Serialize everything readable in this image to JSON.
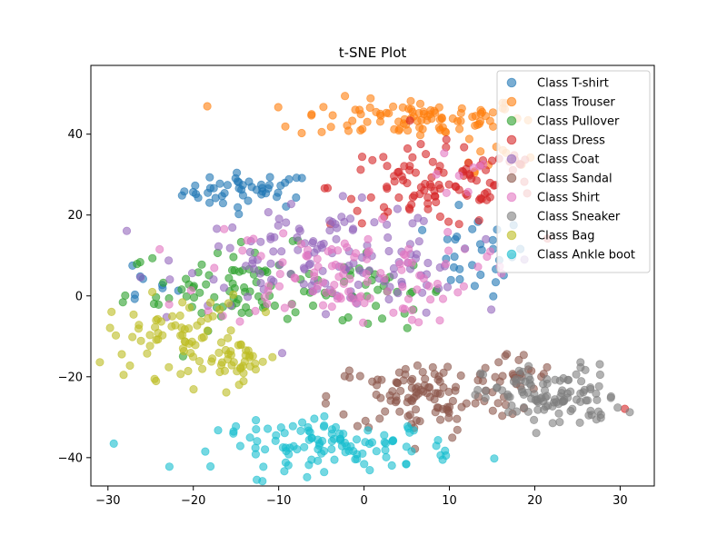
{
  "chart_data": {
    "type": "scatter",
    "title": "t-SNE Plot",
    "xlabel": "",
    "ylabel": "",
    "xlim": [
      -32,
      34
    ],
    "ylim": [
      -47,
      57
    ],
    "xticks": [
      -30,
      -20,
      -10,
      0,
      10,
      20,
      30
    ],
    "yticks": [
      -40,
      -20,
      0,
      20,
      40
    ],
    "grid": false,
    "legend": "top-right",
    "series": [
      {
        "name": "Class T-shirt",
        "color": "#1f77b4",
        "clusters": [
          {
            "cx": -13.5,
            "cy": 26,
            "sx": 3.8,
            "sy": 2.2,
            "n": 48
          },
          {
            "cx": 13,
            "cy": 10,
            "sx": 3,
            "sy": 5,
            "n": 30
          },
          {
            "cx": -26,
            "cy": 3,
            "sx": 2,
            "sy": 3,
            "n": 8
          }
        ]
      },
      {
        "name": "Class Trouser",
        "color": "#ff7f0e",
        "clusters": [
          {
            "cx": 6,
            "cy": 44,
            "sx": 7,
            "sy": 2.5,
            "n": 95
          },
          {
            "cx": 15,
            "cy": 35,
            "sx": 2,
            "sy": 2,
            "n": 10
          }
        ]
      },
      {
        "name": "Class Pullover",
        "color": "#2ca02c",
        "clusters": [
          {
            "cx": -14,
            "cy": 2,
            "sx": 7,
            "sy": 5,
            "n": 90
          },
          {
            "cx": 2,
            "cy": 1,
            "sx": 4,
            "sy": 3,
            "n": 25
          }
        ]
      },
      {
        "name": "Class Dress",
        "color": "#d62728",
        "clusters": [
          {
            "cx": 8,
            "cy": 27,
            "sx": 6,
            "sy": 5,
            "n": 100
          },
          {
            "cx": 31,
            "cy": -28,
            "sx": 0.3,
            "sy": 0.3,
            "n": 1
          },
          {
            "cx": 17,
            "cy": 33,
            "sx": 1.5,
            "sy": 1.5,
            "n": 6
          }
        ]
      },
      {
        "name": "Class Coat",
        "color": "#9467bd",
        "clusters": [
          {
            "cx": -5,
            "cy": 10,
            "sx": 8,
            "sy": 6,
            "n": 110
          },
          {
            "cx": 3,
            "cy": 5,
            "sx": 5,
            "sy": 5,
            "n": 30
          }
        ]
      },
      {
        "name": "Class Sandal",
        "color": "#8c564b",
        "clusters": [
          {
            "cx": 7,
            "cy": -25,
            "sx": 5.5,
            "sy": 4.5,
            "n": 110
          },
          {
            "cx": 17,
            "cy": -20,
            "sx": 3,
            "sy": 3,
            "n": 25
          }
        ]
      },
      {
        "name": "Class Shirt",
        "color": "#e377c2",
        "clusters": [
          {
            "cx": -3,
            "cy": 5,
            "sx": 8,
            "sy": 6,
            "n": 110
          },
          {
            "cx": 10,
            "cy": 30,
            "sx": 3,
            "sy": 3,
            "n": 8
          }
        ]
      },
      {
        "name": "Class Sneaker",
        "color": "#7f7f7f",
        "clusters": [
          {
            "cx": 22,
            "cy": -25,
            "sx": 4,
            "sy": 4,
            "n": 110
          }
        ]
      },
      {
        "name": "Class Bag",
        "color": "#bcbd22",
        "clusters": [
          {
            "cx": -22,
            "cy": -10,
            "sx": 4,
            "sy": 5,
            "n": 70
          },
          {
            "cx": -15,
            "cy": -16,
            "sx": 2.5,
            "sy": 2.5,
            "n": 35
          }
        ]
      },
      {
        "name": "Class Ankle boot",
        "color": "#17becf",
        "clusters": [
          {
            "cx": -3,
            "cy": -37,
            "sx": 7,
            "sy": 3,
            "n": 115
          }
        ]
      }
    ]
  }
}
